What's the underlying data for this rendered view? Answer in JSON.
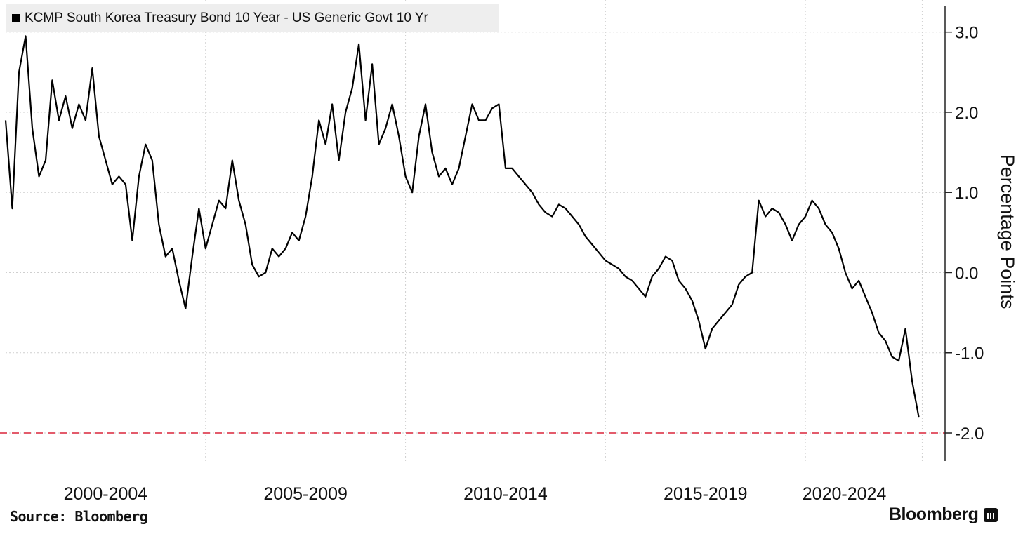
{
  "chart_data": {
    "type": "line",
    "title": "",
    "series": [
      {
        "name": "KCMP South Korea Treasury Bond 10 Year - US Generic Govt 10 Yr",
        "color": "#000000",
        "points": [
          [
            "2000-01",
            1.9
          ],
          [
            "2000-03",
            0.8
          ],
          [
            "2000-05",
            2.5
          ],
          [
            "2000-07",
            2.95
          ],
          [
            "2000-09",
            1.8
          ],
          [
            "2000-11",
            1.2
          ],
          [
            "2001-01",
            1.4
          ],
          [
            "2001-03",
            2.4
          ],
          [
            "2001-05",
            1.9
          ],
          [
            "2001-07",
            2.2
          ],
          [
            "2001-09",
            1.8
          ],
          [
            "2001-11",
            2.1
          ],
          [
            "2002-01",
            1.9
          ],
          [
            "2002-03",
            2.55
          ],
          [
            "2002-05",
            1.7
          ],
          [
            "2002-07",
            1.4
          ],
          [
            "2002-09",
            1.1
          ],
          [
            "2002-11",
            1.2
          ],
          [
            "2003-01",
            1.1
          ],
          [
            "2003-03",
            0.4
          ],
          [
            "2003-05",
            1.2
          ],
          [
            "2003-07",
            1.6
          ],
          [
            "2003-09",
            1.4
          ],
          [
            "2003-11",
            0.6
          ],
          [
            "2004-01",
            0.2
          ],
          [
            "2004-03",
            0.3
          ],
          [
            "2004-05",
            -0.1
          ],
          [
            "2004-07",
            -0.45
          ],
          [
            "2004-09",
            0.2
          ],
          [
            "2004-11",
            0.8
          ],
          [
            "2005-01",
            0.3
          ],
          [
            "2005-03",
            0.6
          ],
          [
            "2005-05",
            0.9
          ],
          [
            "2005-07",
            0.8
          ],
          [
            "2005-09",
            1.4
          ],
          [
            "2005-11",
            0.9
          ],
          [
            "2006-01",
            0.6
          ],
          [
            "2006-03",
            0.1
          ],
          [
            "2006-05",
            -0.05
          ],
          [
            "2006-07",
            0.0
          ],
          [
            "2006-09",
            0.3
          ],
          [
            "2006-11",
            0.2
          ],
          [
            "2007-01",
            0.3
          ],
          [
            "2007-03",
            0.5
          ],
          [
            "2007-05",
            0.4
          ],
          [
            "2007-07",
            0.7
          ],
          [
            "2007-09",
            1.2
          ],
          [
            "2007-11",
            1.9
          ],
          [
            "2008-01",
            1.6
          ],
          [
            "2008-03",
            2.1
          ],
          [
            "2008-05",
            1.4
          ],
          [
            "2008-07",
            2.0
          ],
          [
            "2008-09",
            2.3
          ],
          [
            "2008-11",
            2.85
          ],
          [
            "2009-01",
            1.9
          ],
          [
            "2009-03",
            2.6
          ],
          [
            "2009-05",
            1.6
          ],
          [
            "2009-07",
            1.8
          ],
          [
            "2009-09",
            2.1
          ],
          [
            "2009-11",
            1.7
          ],
          [
            "2010-01",
            1.2
          ],
          [
            "2010-03",
            1.0
          ],
          [
            "2010-05",
            1.7
          ],
          [
            "2010-07",
            2.1
          ],
          [
            "2010-09",
            1.5
          ],
          [
            "2010-11",
            1.2
          ],
          [
            "2011-01",
            1.3
          ],
          [
            "2011-03",
            1.1
          ],
          [
            "2011-05",
            1.3
          ],
          [
            "2011-07",
            1.7
          ],
          [
            "2011-09",
            2.1
          ],
          [
            "2011-11",
            1.9
          ],
          [
            "2012-01",
            1.9
          ],
          [
            "2012-03",
            2.05
          ],
          [
            "2012-05",
            2.1
          ],
          [
            "2012-07",
            1.3
          ],
          [
            "2012-09",
            1.3
          ],
          [
            "2012-11",
            1.2
          ],
          [
            "2013-01",
            1.1
          ],
          [
            "2013-03",
            1.0
          ],
          [
            "2013-05",
            0.85
          ],
          [
            "2013-07",
            0.75
          ],
          [
            "2013-09",
            0.7
          ],
          [
            "2013-11",
            0.85
          ],
          [
            "2014-01",
            0.8
          ],
          [
            "2014-03",
            0.7
          ],
          [
            "2014-05",
            0.6
          ],
          [
            "2014-07",
            0.45
          ],
          [
            "2014-09",
            0.35
          ],
          [
            "2014-11",
            0.25
          ],
          [
            "2015-01",
            0.15
          ],
          [
            "2015-03",
            0.1
          ],
          [
            "2015-05",
            0.05
          ],
          [
            "2015-07",
            -0.05
          ],
          [
            "2015-09",
            -0.1
          ],
          [
            "2015-11",
            -0.2
          ],
          [
            "2016-01",
            -0.3
          ],
          [
            "2016-03",
            -0.05
          ],
          [
            "2016-05",
            0.05
          ],
          [
            "2016-07",
            0.2
          ],
          [
            "2016-09",
            0.15
          ],
          [
            "2016-11",
            -0.1
          ],
          [
            "2017-01",
            -0.2
          ],
          [
            "2017-03",
            -0.35
          ],
          [
            "2017-05",
            -0.6
          ],
          [
            "2017-07",
            -0.95
          ],
          [
            "2017-09",
            -0.7
          ],
          [
            "2017-11",
            -0.6
          ],
          [
            "2018-01",
            -0.5
          ],
          [
            "2018-03",
            -0.4
          ],
          [
            "2018-05",
            -0.15
          ],
          [
            "2018-07",
            -0.05
          ],
          [
            "2018-09",
            0.0
          ],
          [
            "2018-11",
            0.9
          ],
          [
            "2019-01",
            0.7
          ],
          [
            "2019-03",
            0.8
          ],
          [
            "2019-05",
            0.75
          ],
          [
            "2019-07",
            0.6
          ],
          [
            "2019-09",
            0.4
          ],
          [
            "2019-11",
            0.6
          ],
          [
            "2020-01",
            0.7
          ],
          [
            "2020-03",
            0.9
          ],
          [
            "2020-05",
            0.8
          ],
          [
            "2020-07",
            0.6
          ],
          [
            "2020-09",
            0.5
          ],
          [
            "2020-11",
            0.3
          ],
          [
            "2021-01",
            0.0
          ],
          [
            "2021-03",
            -0.2
          ],
          [
            "2021-05",
            -0.1
          ],
          [
            "2021-07",
            -0.3
          ],
          [
            "2021-09",
            -0.5
          ],
          [
            "2021-11",
            -0.75
          ],
          [
            "2022-01",
            -0.85
          ],
          [
            "2022-03",
            -1.05
          ],
          [
            "2022-05",
            -1.1
          ],
          [
            "2022-07",
            -0.7
          ],
          [
            "2022-09",
            -1.35
          ],
          [
            "2022-11",
            -1.8
          ]
        ]
      }
    ],
    "x_tick_labels": [
      "2000-2004",
      "2005-2009",
      "2010-2014",
      "2015-2019",
      "2020-2024"
    ],
    "y_ticks": [
      3.0,
      2.0,
      1.0,
      0.0,
      -1.0,
      -2.0
    ],
    "y_tick_labels": [
      "3.0",
      "2.0",
      "1.0",
      "0.0",
      "-1.0",
      "-2.0"
    ],
    "xlim": [
      "2000-01",
      "2022-12"
    ],
    "ylim": [
      -2.35,
      3.4
    ],
    "xlabel": "",
    "ylabel": "Percentage Points",
    "y_axis_side": "right",
    "reference_line": {
      "value": -2.0,
      "style": "dashed",
      "color": "#e35b6b"
    },
    "grid": true,
    "legend_placement": "top-left"
  },
  "legend": {
    "label": "KCMP South Korea Treasury Bond 10 Year - US Generic Govt 10 Yr"
  },
  "footer": {
    "source": "Source: Bloomberg",
    "brand": "Bloomberg"
  }
}
